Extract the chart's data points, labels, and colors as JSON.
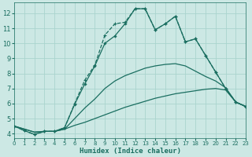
{
  "xlabel": "Humidex (Indice chaleur)",
  "background_color": "#cce8e4",
  "grid_color": "#aad4ce",
  "line_color": "#1a6e60",
  "xlim": [
    0,
    23
  ],
  "ylim": [
    3.7,
    12.7
  ],
  "xticks": [
    0,
    1,
    2,
    3,
    4,
    5,
    6,
    7,
    8,
    9,
    10,
    11,
    12,
    13,
    14,
    15,
    16,
    17,
    18,
    19,
    20,
    21,
    22,
    23
  ],
  "yticks": [
    4,
    5,
    6,
    7,
    8,
    9,
    10,
    11,
    12
  ],
  "line1_x": [
    0,
    1,
    2,
    3,
    4,
    5,
    6,
    7,
    8,
    9,
    10,
    11,
    12,
    13,
    14,
    15,
    16,
    17,
    18,
    19,
    20,
    21,
    22,
    23
  ],
  "line1_y": [
    4.5,
    4.2,
    3.95,
    4.15,
    4.15,
    4.4,
    5.95,
    7.3,
    8.5,
    10.0,
    10.5,
    11.3,
    12.3,
    12.3,
    10.9,
    11.3,
    11.8,
    10.1,
    10.3,
    9.2,
    8.1,
    7.0,
    6.1,
    5.8
  ],
  "line2_x": [
    0,
    1,
    2,
    3,
    4,
    5,
    6,
    7,
    8,
    9,
    10,
    11,
    12,
    13,
    14,
    15,
    16,
    17,
    18,
    19,
    20,
    21,
    22,
    23
  ],
  "line2_y": [
    4.5,
    4.2,
    3.95,
    4.15,
    4.15,
    4.4,
    6.0,
    7.55,
    8.55,
    10.55,
    11.3,
    11.4,
    12.3,
    12.3,
    10.9,
    11.3,
    11.8,
    10.1,
    10.3,
    9.2,
    8.1,
    7.0,
    6.1,
    5.8
  ],
  "line3_x": [
    0,
    1,
    2,
    3,
    4,
    5,
    6,
    7,
    8,
    9,
    10,
    11,
    12,
    13,
    14,
    15,
    16,
    17,
    18,
    19,
    20,
    21,
    22,
    23
  ],
  "line3_y": [
    4.5,
    4.3,
    4.1,
    4.15,
    4.15,
    4.3,
    4.55,
    4.75,
    5.0,
    5.25,
    5.5,
    5.75,
    5.95,
    6.15,
    6.35,
    6.5,
    6.65,
    6.75,
    6.85,
    6.95,
    7.0,
    6.9,
    6.1,
    5.8
  ],
  "line4_x": [
    0,
    1,
    2,
    3,
    4,
    5,
    6,
    7,
    8,
    9,
    10,
    11,
    12,
    13,
    14,
    15,
    16,
    17,
    18,
    19,
    20,
    21,
    22,
    23
  ],
  "line4_y": [
    4.5,
    4.3,
    4.1,
    4.15,
    4.15,
    4.3,
    5.0,
    5.7,
    6.3,
    7.0,
    7.5,
    7.85,
    8.1,
    8.35,
    8.5,
    8.6,
    8.65,
    8.5,
    8.15,
    7.8,
    7.5,
    7.05,
    6.1,
    5.8
  ]
}
